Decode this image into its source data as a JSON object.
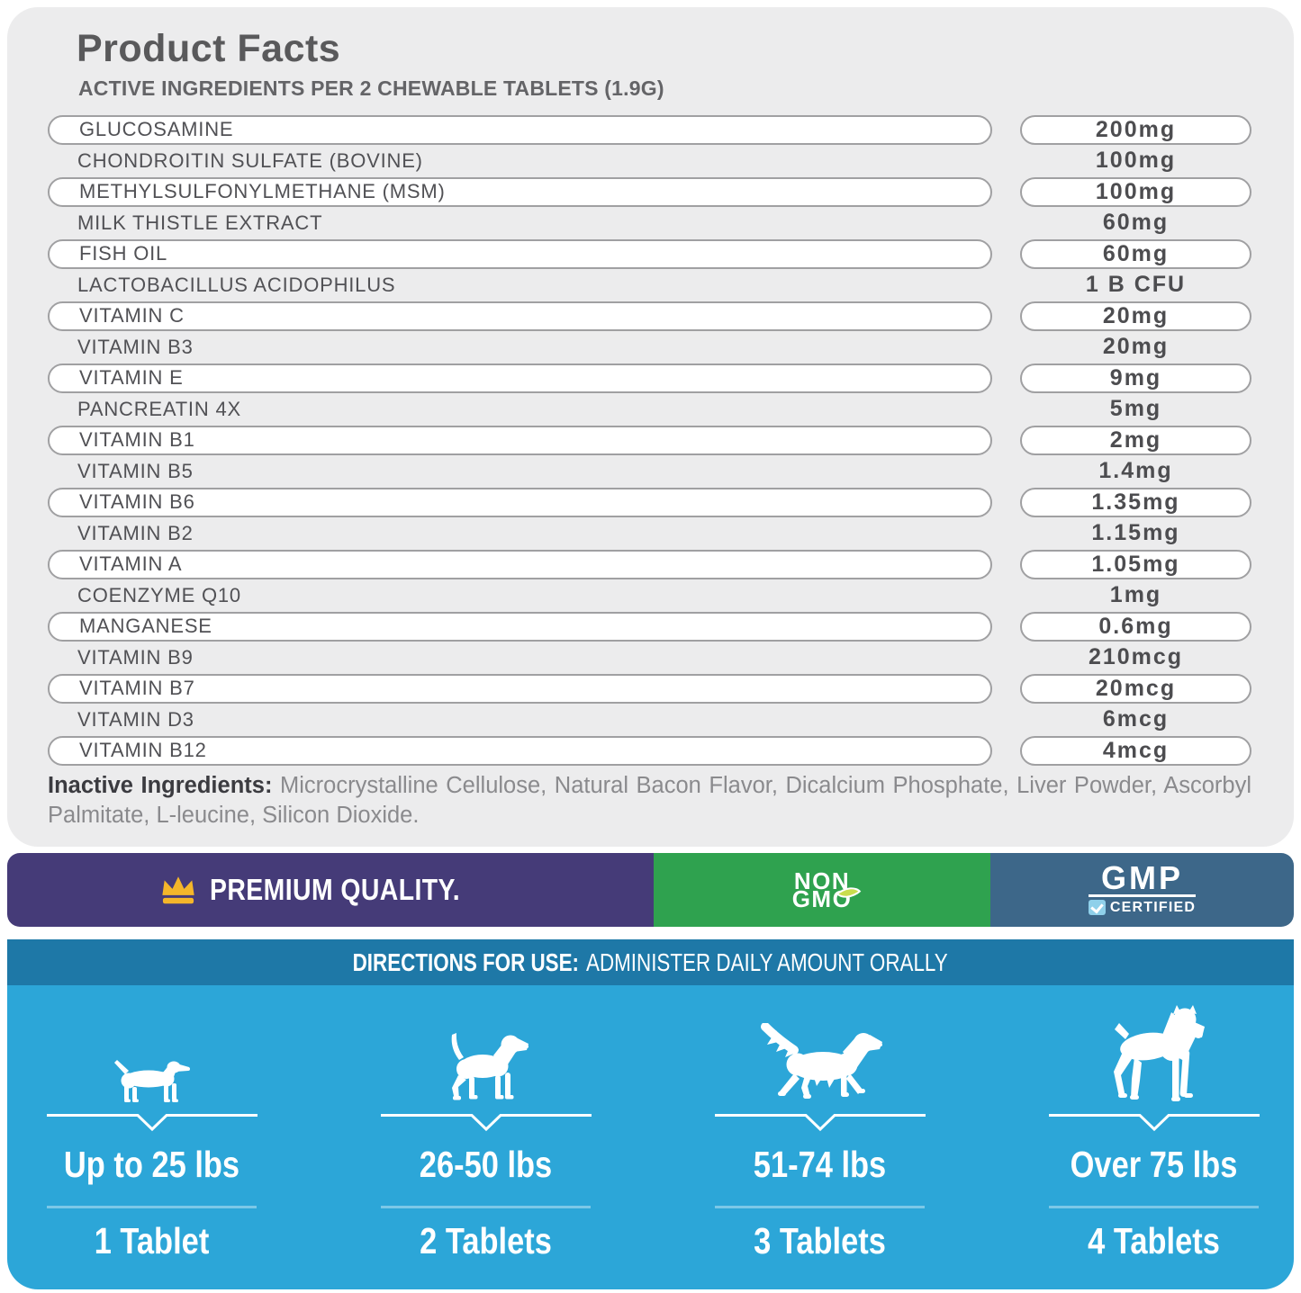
{
  "facts": {
    "title": "Product Facts",
    "subtitle": "ACTIVE INGREDIENTS PER 2 CHEWABLE TABLETS (1.9G)"
  },
  "ingredients": [
    {
      "name": "GLUCOSAMINE",
      "amount": "200mg"
    },
    {
      "name": "CHONDROITIN SULFATE (BOVINE)",
      "amount": "100mg"
    },
    {
      "name": "METHYLSULFONYLMETHANE (MSM)",
      "amount": "100mg"
    },
    {
      "name": "MILK THISTLE EXTRACT",
      "amount": "60mg"
    },
    {
      "name": "FISH OIL",
      "amount": "60mg"
    },
    {
      "name": "LACTOBACILLUS ACIDOPHILUS",
      "amount": "1 B CFU"
    },
    {
      "name": "VITAMIN C",
      "amount": "20mg"
    },
    {
      "name": "VITAMIN B3",
      "amount": "20mg"
    },
    {
      "name": "VITAMIN E",
      "amount": "9mg"
    },
    {
      "name": "PANCREATIN 4X",
      "amount": "5mg"
    },
    {
      "name": "VITAMIN B1",
      "amount": "2mg"
    },
    {
      "name": "VITAMIN B5",
      "amount": "1.4mg"
    },
    {
      "name": "VITAMIN B6",
      "amount": "1.35mg"
    },
    {
      "name": "VITAMIN B2",
      "amount": "1.15mg"
    },
    {
      "name": "VITAMIN A",
      "amount": "1.05mg"
    },
    {
      "name": "COENZYME Q10",
      "amount": "1mg"
    },
    {
      "name": "MANGANESE",
      "amount": "0.6mg"
    },
    {
      "name": "VITAMIN B9",
      "amount": "210mcg"
    },
    {
      "name": "VITAMIN B7",
      "amount": "20mcg"
    },
    {
      "name": "VITAMIN D3",
      "amount": "6mcg"
    },
    {
      "name": "VITAMIN B12",
      "amount": "4mcg"
    }
  ],
  "inactive": {
    "label": "Inactive Ingredients:",
    "text": "Microcrystalline Cellulose, Natural Bacon Flavor, Dicalcium Phosphate, Liver Powder, Ascorbyl Palmitate, L-leucine, Silicon Dioxide."
  },
  "badges": {
    "premium": "PREMIUM QUALITY.",
    "non": "NON",
    "gmo": "GMO",
    "gmp": "GMP",
    "certified": "CERTIFIED",
    "purple": "#453B78",
    "green": "#2FA24F",
    "steel": "#3D6789",
    "crown_color": "#F4B62A",
    "leaf_color": "#C9DD4E"
  },
  "directions": {
    "label": "DIRECTIONS FOR USE:",
    "text": "ADMINISTER DAILY AMOUNT ORALLY",
    "header_color": "#1E78A7",
    "body_color": "#2CA6D8",
    "columns": [
      {
        "icon": "dachshund-dog-icon",
        "weight": "Up to 25 lbs",
        "tablets": "1 Tablet"
      },
      {
        "icon": "beagle-dog-icon",
        "weight": "26-50 lbs",
        "tablets": "2 Tablets"
      },
      {
        "icon": "retriever-dog-icon",
        "weight": "51-74 lbs",
        "tablets": "3 Tablets"
      },
      {
        "icon": "boxer-dog-icon",
        "weight": "Over 75 lbs",
        "tablets": "4 Tablets"
      }
    ]
  }
}
